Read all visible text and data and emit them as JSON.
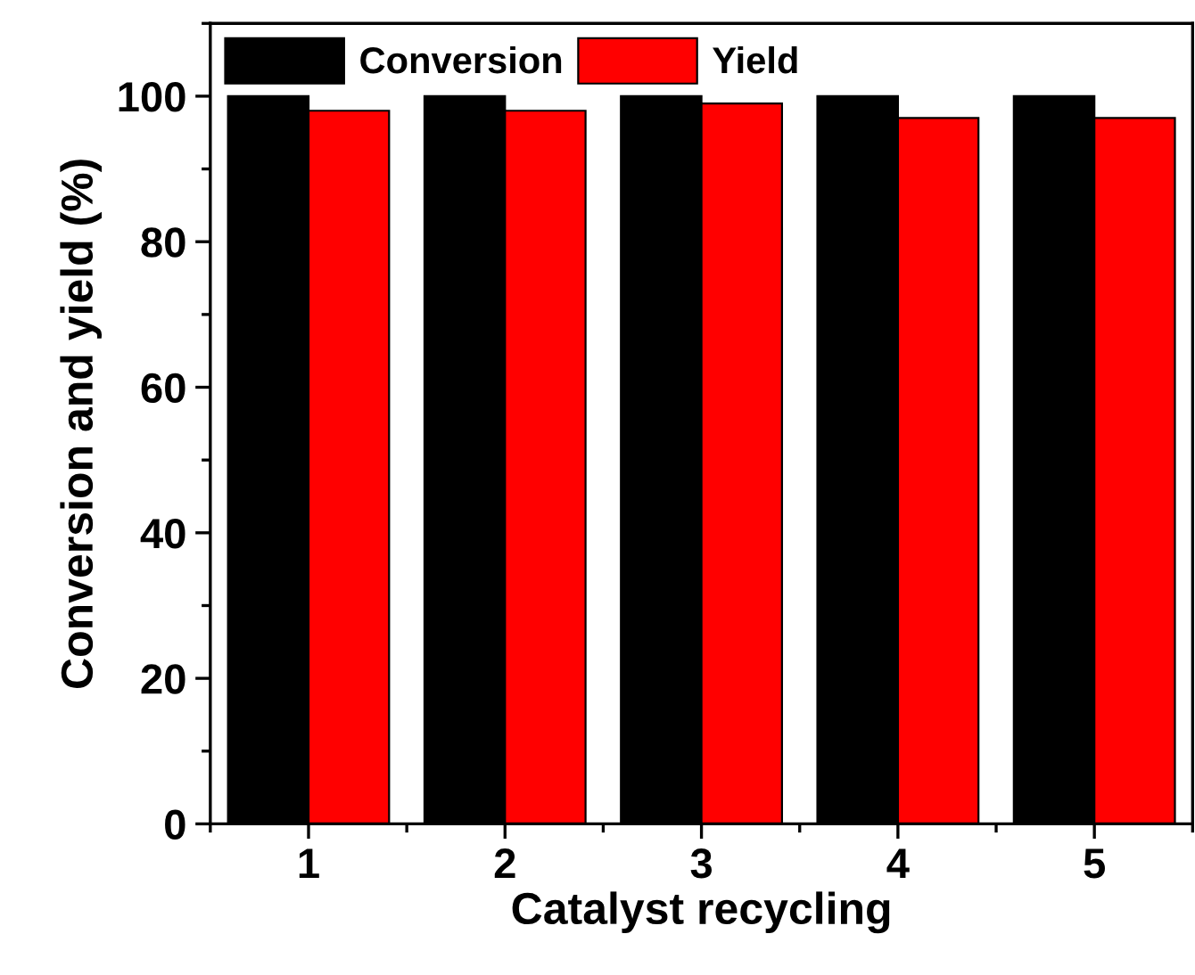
{
  "chart_data": {
    "type": "bar",
    "xlabel": "Catalyst recycling",
    "ylabel": "Conversion and yield (%)",
    "categories": [
      "1",
      "2",
      "3",
      "4",
      "5"
    ],
    "series": [
      {
        "name": "Conversion",
        "color": "#000000",
        "values": [
          100,
          100,
          100,
          100,
          100
        ]
      },
      {
        "name": "Yield",
        "color": "#ff0000",
        "values": [
          98,
          98,
          99,
          97,
          97
        ]
      }
    ],
    "ylim": [
      0,
      110
    ],
    "yticks": [
      0,
      20,
      40,
      60,
      80,
      100
    ],
    "grid": false,
    "legend": "top left"
  }
}
